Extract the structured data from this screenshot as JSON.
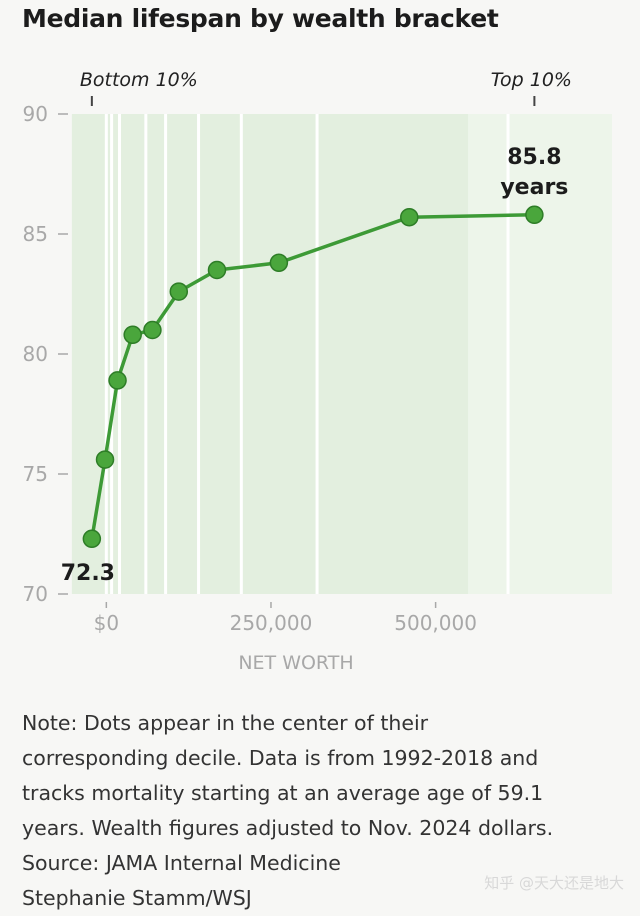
{
  "chart_data": {
    "type": "line",
    "title": "Median lifespan by wealth bracket",
    "xlabel": "NET WORTH",
    "ylabel": "",
    "xlim": [
      -40000,
      780000
    ],
    "ylim": [
      70,
      90
    ],
    "xticks": [
      {
        "value": 0,
        "label": "$0"
      },
      {
        "value": 250000,
        "label": "250,000"
      },
      {
        "value": 500000,
        "label": "500,000"
      }
    ],
    "yticks": [
      90,
      85,
      80,
      75,
      70
    ],
    "top_labels": [
      {
        "value": -22000,
        "label": "Bottom 10%"
      },
      {
        "value": 650000,
        "label": "Top 10%"
      }
    ],
    "decile_boundaries": [
      0,
      8000,
      20000,
      60000,
      90000,
      140000,
      205000,
      320000,
      610000
    ],
    "series": [
      {
        "name": "Median lifespan",
        "x": [
          -22000,
          -2000,
          17000,
          40000,
          70000,
          110000,
          168000,
          262000,
          460000,
          650000
        ],
        "y": [
          72.3,
          75.6,
          78.9,
          80.8,
          81.0,
          82.6,
          83.5,
          83.8,
          85.7,
          85.8
        ]
      }
    ],
    "annotations": [
      {
        "point_index": 0,
        "text": "72.3"
      },
      {
        "point_index": 9,
        "text": "85.8",
        "subtext": "years"
      }
    ]
  },
  "note_lines": [
    "Note: Dots appear in the center of their",
    "corresponding decile. Data is from 1992-2018 and",
    "tracks mortality starting at an average age of 59.1",
    "years. Wealth figures adjusted to Nov. 2024 dollars.",
    "Source: JAMA Internal Medicine",
    "Stephanie Stamm/WSJ"
  ],
  "watermark": "知乎 @天大还是地大",
  "colors": {
    "line": "#3d9a36",
    "dot": "#4aa63c",
    "dot_stroke": "#2e7d27",
    "band_a": "#e3efdf",
    "band_b": "#edf5ea",
    "stripe": "#ffffff",
    "axis_text": "#a8a8a8",
    "title": "#1c1c1c"
  }
}
